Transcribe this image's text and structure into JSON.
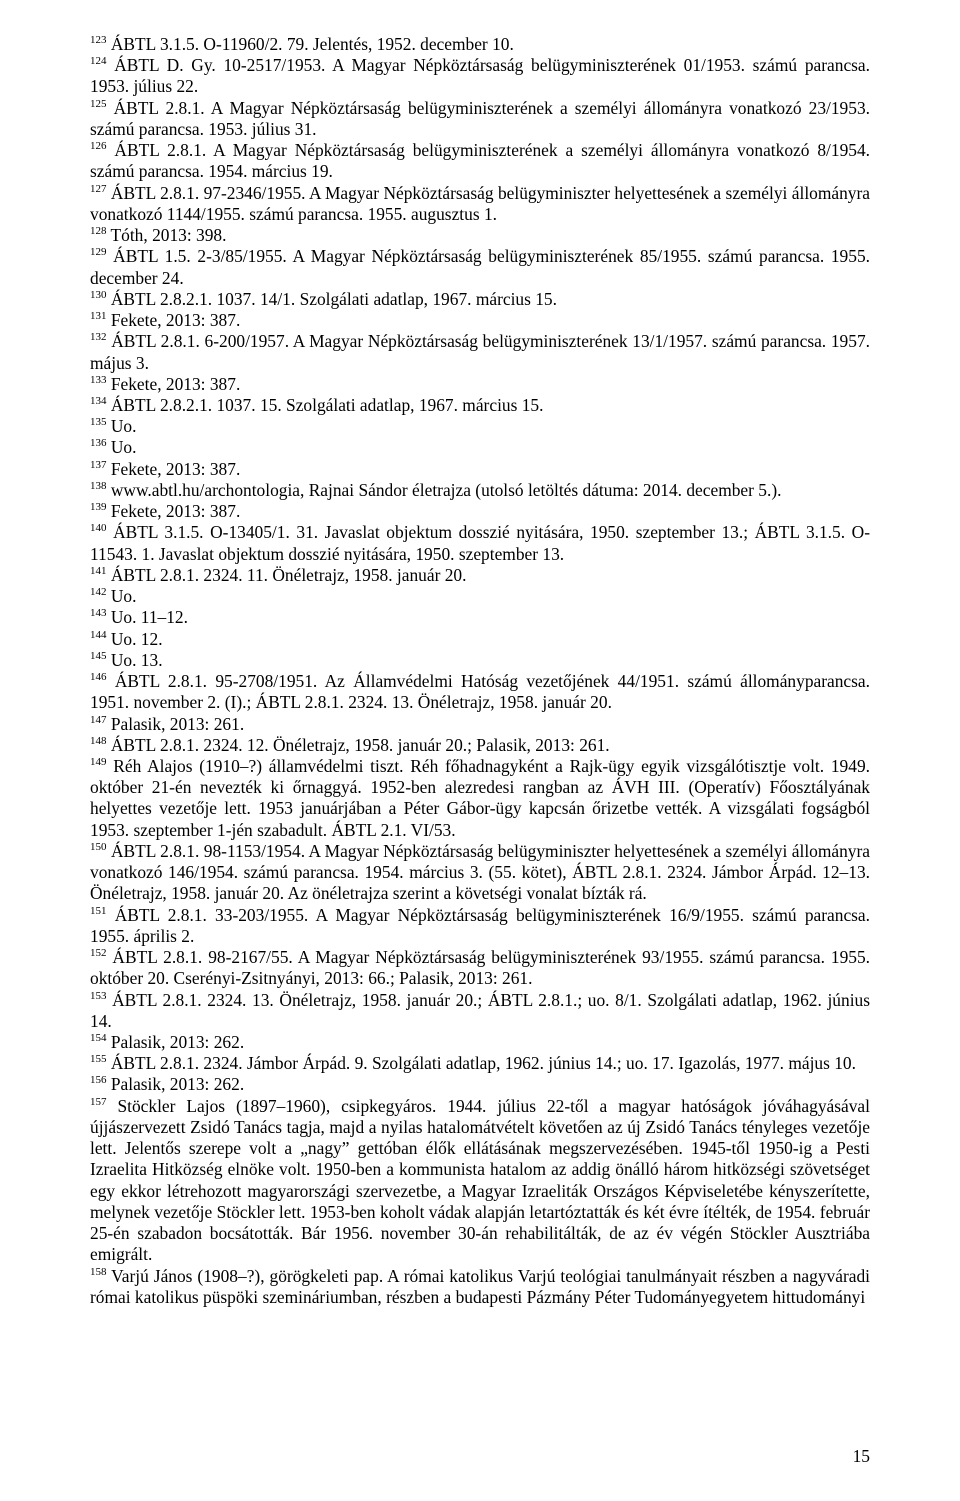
{
  "page_number": "15",
  "footnotes": [
    {
      "num": "123",
      "text": " ÁBTL 3.1.5. O-11960/2. 79. Jelentés, 1952. december 10."
    },
    {
      "num": "124",
      "text": " ÁBTL D. Gy. 10-2517/1953. A Magyar Népköztársaság belügyminiszterének 01/1953. számú parancsa. 1953. július 22."
    },
    {
      "num": "125",
      "text": " ÁBTL 2.8.1. A Magyar Népköztársaság belügyminiszterének a személyi állományra vonatkozó 23/1953. számú parancsa. 1953. július 31."
    },
    {
      "num": "126",
      "text": " ÁBTL 2.8.1. A Magyar Népköztársaság belügyminiszterének a személyi állományra vonatkozó 8/1954. számú parancsa. 1954. március 19."
    },
    {
      "num": "127",
      "text": " ÁBTL 2.8.1. 97-2346/1955. A Magyar Népköztársaság belügyminiszter helyettesének a személyi állományra vonatkozó 1144/1955. számú parancsa. 1955. augusztus 1."
    },
    {
      "num": "128",
      "text": " Tóth, 2013: 398."
    },
    {
      "num": "129",
      "text": " ÁBTL 1.5. 2-3/85/1955. A Magyar Népköztársaság belügyminiszterének 85/1955. számú parancsa. 1955. december 24."
    },
    {
      "num": "130",
      "text": " ÁBTL 2.8.2.1. 1037. 14/1. Szolgálati adatlap, 1967. március 15."
    },
    {
      "num": "131",
      "text": " Fekete, 2013: 387."
    },
    {
      "num": "132",
      "text": " ÁBTL 2.8.1. 6-200/1957. A Magyar Népköztársaság belügyminiszterének 13/1/1957. számú parancsa. 1957. május 3."
    },
    {
      "num": "133",
      "text": " Fekete, 2013: 387."
    },
    {
      "num": "134",
      "text": " ÁBTL 2.8.2.1. 1037. 15. Szolgálati adatlap, 1967. március 15."
    },
    {
      "num": "135",
      "text": " Uo."
    },
    {
      "num": "136",
      "text": " Uo."
    },
    {
      "num": "137",
      "text": " Fekete, 2013: 387."
    },
    {
      "num": "138",
      "text": " www.abtl.hu/archontologia, Rajnai Sándor életrajza (utolsó letöltés dátuma: 2014. december 5.)."
    },
    {
      "num": "139",
      "text": " Fekete, 2013: 387."
    },
    {
      "num": "140",
      "text": " ÁBTL 3.1.5. O-13405/1. 31. Javaslat objektum dosszié nyitására, 1950. szeptember 13.; ÁBTL 3.1.5. O-11543. 1. Javaslat objektum dosszié nyitására, 1950. szeptember 13."
    },
    {
      "num": "141",
      "text": " ÁBTL 2.8.1. 2324. 11. Önéletrajz, 1958. január 20."
    },
    {
      "num": "142",
      "text": " Uo."
    },
    {
      "num": "143",
      "text": " Uo. 11–12."
    },
    {
      "num": "144",
      "text": " Uo. 12."
    },
    {
      "num": "145",
      "text": " Uo. 13."
    },
    {
      "num": "146",
      "text": " ÁBTL 2.8.1. 95-2708/1951. Az Államvédelmi Hatóság vezetőjének 44/1951. számú állományparancsa. 1951. november 2. (I).; ÁBTL 2.8.1. 2324. 13. Önéletrajz, 1958. január 20."
    },
    {
      "num": "147",
      "text": " Palasik, 2013: 261."
    },
    {
      "num": "148",
      "text": " ÁBTL 2.8.1. 2324. 12. Önéletrajz, 1958. január 20.; Palasik, 2013: 261."
    },
    {
      "num": "149",
      "text": " Réh Alajos (1910–?) államvédelmi tiszt. Réh főhadnagyként a Rajk-ügy egyik vizsgálótisztje volt. 1949. október 21-én nevezték ki őrnaggyá. 1952-ben alezredesi rangban az ÁVH III. (Operatív) Főosztályának helyettes vezetője lett. 1953 januárjában a Péter Gábor-ügy kapcsán őrizetbe vették. A vizsgálati fogságból 1953. szeptember 1-jén szabadult. ÁBTL 2.1. VI/53."
    },
    {
      "num": "150",
      "text": " ÁBTL 2.8.1. 98-1153/1954. A Magyar Népköztársaság belügyminiszter helyettesének a személyi állományra vonatkozó 146/1954. számú parancsa. 1954. március 3. (55. kötet), ÁBTL 2.8.1. 2324. Jámbor Árpád. 12–13. Önéletrajz, 1958. január 20. Az önéletrajza szerint a követségi vonalat bízták rá."
    },
    {
      "num": "151",
      "text": " ÁBTL 2.8.1. 33-203/1955. A Magyar Népköztársaság belügyminiszterének 16/9/1955. számú parancsa. 1955. április 2."
    },
    {
      "num": "152",
      "text": " ÁBTL 2.8.1. 98-2167/55. A Magyar Népköztársaság belügyminiszterének 93/1955. számú parancsa. 1955. október 20. Cserényi-Zsitnyányi, 2013: 66.; Palasik, 2013: 261."
    },
    {
      "num": "153",
      "text": " ÁBTL 2.8.1. 2324. 13. Önéletrajz, 1958. január 20.; ÁBTL 2.8.1.; uo. 8/1. Szolgálati adatlap, 1962. június 14."
    },
    {
      "num": "154",
      "text": " Palasik, 2013: 262."
    },
    {
      "num": "155",
      "text": " ÁBTL 2.8.1. 2324. Jámbor Árpád. 9. Szolgálati adatlap, 1962. június 14.; uo. 17. Igazolás, 1977. május 10."
    },
    {
      "num": "156",
      "text": " Palasik, 2013: 262."
    },
    {
      "num": "157",
      "text": " Stöckler Lajos (1897–1960), csipkegyáros. 1944. július 22-től a magyar hatóságok jóváhagyásával újjászervezett Zsidó Tanács tagja, majd a nyilas hatalomátvételt követően az új Zsidó Tanács tényleges vezetője lett. Jelentős szerepe volt a „nagy” gettóban élők ellátásának megszervezésében. 1945-től 1950-ig a Pesti Izraelita Hitközség elnöke volt. 1950-ben a kommunista hatalom az addig önálló három hitközségi szövetséget egy ekkor létrehozott magyarországi szervezetbe, a Magyar Izraeliták Országos Képviseletébe kényszerítette, melynek vezetője Stöckler lett. 1953-ben koholt vádak alapján letartóztatták és két évre ítélték, de 1954. február 25-én szabadon bocsátották. Bár 1956. november 30-án rehabilitálták, de az év végén Stöckler Ausztriába emigrált."
    },
    {
      "num": "158",
      "text": " Varjú János (1908–?), görögkeleti pap. A római katolikus Varjú teológiai tanulmányait részben a nagyváradi római katolikus püspöki szemináriumban, részben a budapesti Pázmány Péter Tudományegyetem hittudományi"
    }
  ]
}
